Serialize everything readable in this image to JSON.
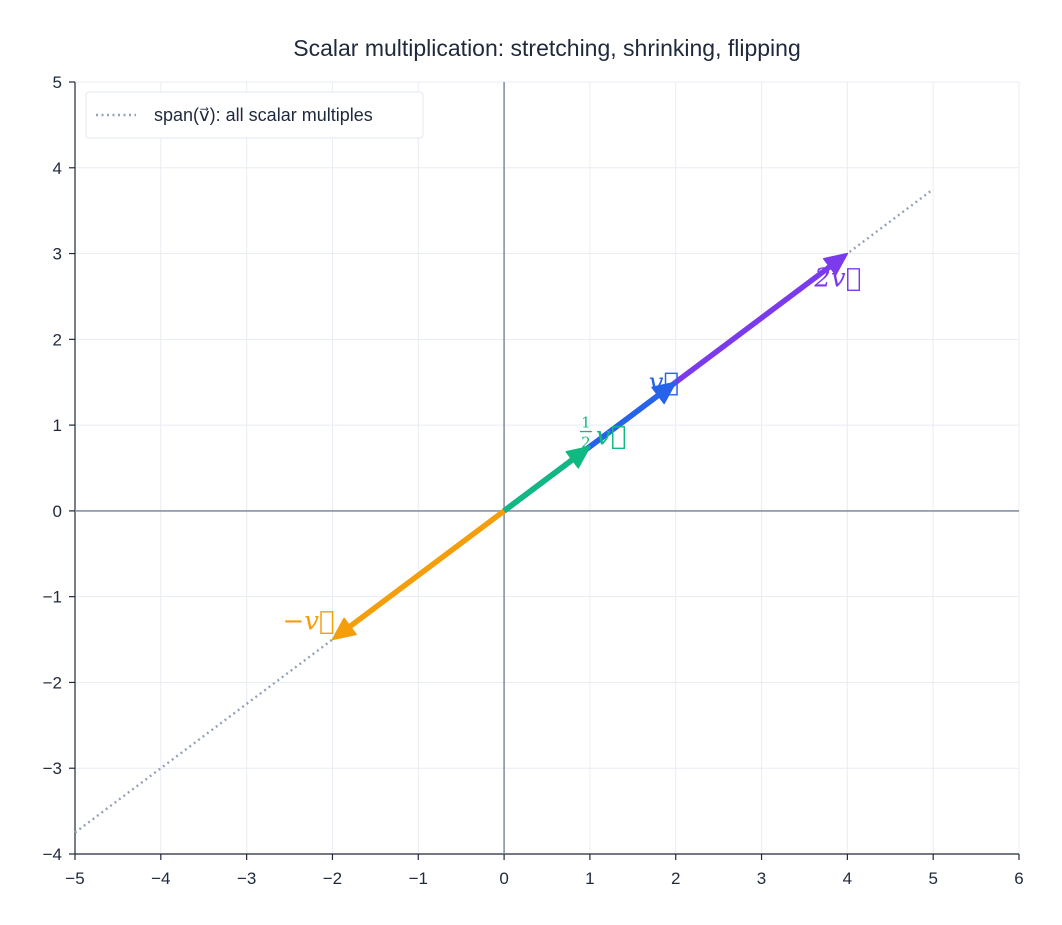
{
  "chart_data": {
    "type": "vector",
    "title": "Scalar multiplication: stretching, shrinking, flipping",
    "xlim": [
      -5,
      6
    ],
    "ylim": [
      -4,
      5
    ],
    "xticks": [
      "−5",
      "−4",
      "−3",
      "−2",
      "−1",
      "0",
      "1",
      "2",
      "3",
      "4",
      "5",
      "6"
    ],
    "yticks": [
      "−4",
      "−3",
      "−2",
      "−1",
      "0",
      "1",
      "2",
      "3",
      "4",
      "5"
    ],
    "grid": true,
    "legend_position": "top-left",
    "span": {
      "label": "span(v⃗): all scalar multiples",
      "from": [
        -5,
        -3.75
      ],
      "to": [
        5,
        3.75
      ],
      "color": "#94a3b8"
    },
    "vectors": [
      {
        "name": "2v",
        "scalar": 2,
        "x": 4,
        "y": 3,
        "color": "#7c3aed",
        "label_prefix": "2",
        "label_symbol": "v⃗"
      },
      {
        "name": "v",
        "scalar": 1,
        "x": 2,
        "y": 1.5,
        "color": "#2563eb",
        "label_prefix": "",
        "label_symbol": "v⃗"
      },
      {
        "name": "half-v",
        "scalar": 0.5,
        "x": 1,
        "y": 0.75,
        "color": "#10b981",
        "label_prefix": "",
        "label_num": "1",
        "label_den": "2",
        "label_symbol": "v⃗"
      },
      {
        "name": "neg-v",
        "scalar": -1,
        "x": -2,
        "y": -1.5,
        "color": "#f59e0b",
        "label_prefix": "−",
        "label_symbol": "v⃗"
      }
    ]
  }
}
